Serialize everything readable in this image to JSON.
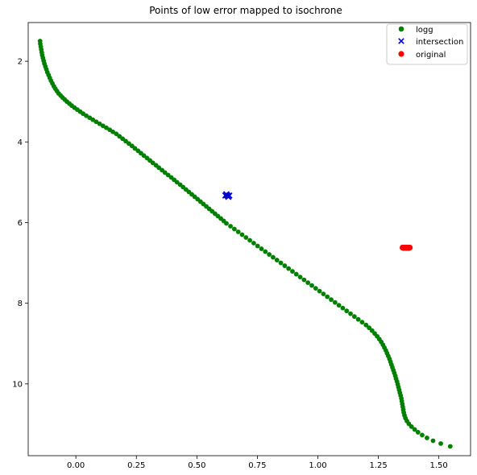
{
  "chart_data": {
    "type": "scatter",
    "title": "Points of low error mapped to isochrone",
    "xlabel": "",
    "ylabel": "",
    "xlim": [
      -0.197,
      1.631
    ],
    "ylim": [
      11.78,
      1.04
    ],
    "y_inverted": true,
    "grid": false,
    "legend_position": "top-right",
    "x_ticks": [
      0.0,
      0.25,
      0.5,
      0.75,
      1.0,
      1.25,
      1.5
    ],
    "x_tick_labels": [
      "0.00",
      "0.25",
      "0.50",
      "0.75",
      "1.00",
      "1.25",
      "1.50"
    ],
    "y_ticks": [
      2,
      4,
      6,
      8,
      10
    ],
    "y_tick_labels": [
      "2",
      "4",
      "6",
      "8",
      "10"
    ],
    "series": [
      {
        "name": "logg",
        "marker": "circle",
        "color": "#008000",
        "x": [
          -0.148,
          -0.147,
          -0.145,
          -0.143,
          -0.141,
          -0.139,
          -0.136,
          -0.133,
          -0.13,
          -0.126,
          -0.122,
          -0.118,
          -0.113,
          -0.108,
          -0.103,
          -0.097,
          -0.091,
          -0.085,
          -0.078,
          -0.071,
          -0.063,
          -0.055,
          -0.046,
          -0.037,
          -0.027,
          -0.017,
          -0.006,
          0.006,
          0.018,
          0.03,
          0.043,
          0.057,
          0.07,
          0.084,
          0.098,
          0.112,
          0.126,
          0.14,
          0.153,
          0.167,
          0.18,
          0.193,
          0.206,
          0.219,
          0.232,
          0.244,
          0.257,
          0.269,
          0.281,
          0.294,
          0.306,
          0.318,
          0.331,
          0.343,
          0.356,
          0.368,
          0.381,
          0.394,
          0.406,
          0.418,
          0.431,
          0.443,
          0.455,
          0.467,
          0.479,
          0.491,
          0.503,
          0.515,
          0.527,
          0.539,
          0.551,
          0.563,
          0.575,
          0.587,
          0.599,
          0.611,
          0.622,
          0.639,
          0.655,
          0.671,
          0.687,
          0.703,
          0.719,
          0.735,
          0.751,
          0.767,
          0.783,
          0.799,
          0.815,
          0.831,
          0.847,
          0.863,
          0.879,
          0.895,
          0.911,
          0.927,
          0.943,
          0.959,
          0.975,
          0.991,
          1.007,
          1.023,
          1.039,
          1.055,
          1.071,
          1.087,
          1.103,
          1.119,
          1.135,
          1.151,
          1.167,
          1.183,
          1.199,
          1.212,
          1.224,
          1.235,
          1.245,
          1.254,
          1.262,
          1.269,
          1.275,
          1.281,
          1.286,
          1.291,
          1.296,
          1.3,
          1.304,
          1.308,
          1.312,
          1.316,
          1.32,
          1.323,
          1.327,
          1.33,
          1.333,
          1.336,
          1.339,
          1.342,
          1.345,
          1.347,
          1.349,
          1.351,
          1.353,
          1.355,
          1.358,
          1.362,
          1.368,
          1.376,
          1.387,
          1.4,
          1.414,
          1.431,
          1.451,
          1.476,
          1.508,
          1.547
        ],
        "y": [
          1.5,
          1.57,
          1.64,
          1.71,
          1.78,
          1.85,
          1.92,
          1.99,
          2.06,
          2.13,
          2.2,
          2.27,
          2.34,
          2.41,
          2.48,
          2.55,
          2.62,
          2.68,
          2.74,
          2.8,
          2.85,
          2.9,
          2.95,
          3.0,
          3.05,
          3.1,
          3.15,
          3.2,
          3.25,
          3.3,
          3.35,
          3.4,
          3.45,
          3.5,
          3.55,
          3.6,
          3.65,
          3.7,
          3.75,
          3.8,
          3.86,
          3.92,
          3.98,
          4.04,
          4.1,
          4.16,
          4.22,
          4.28,
          4.34,
          4.4,
          4.46,
          4.52,
          4.58,
          4.64,
          4.7,
          4.76,
          4.82,
          4.88,
          4.94,
          5.0,
          5.06,
          5.12,
          5.18,
          5.24,
          5.3,
          5.36,
          5.42,
          5.48,
          5.54,
          5.6,
          5.66,
          5.72,
          5.78,
          5.84,
          5.9,
          5.96,
          6.02,
          6.09,
          6.16,
          6.23,
          6.3,
          6.37,
          6.44,
          6.51,
          6.58,
          6.65,
          6.72,
          6.79,
          6.86,
          6.93,
          7.0,
          7.07,
          7.14,
          7.21,
          7.28,
          7.35,
          7.42,
          7.49,
          7.56,
          7.63,
          7.7,
          7.77,
          7.84,
          7.91,
          7.98,
          8.05,
          8.12,
          8.19,
          8.26,
          8.33,
          8.4,
          8.47,
          8.54,
          8.61,
          8.68,
          8.75,
          8.82,
          8.89,
          8.96,
          9.03,
          9.1,
          9.17,
          9.24,
          9.31,
          9.38,
          9.45,
          9.52,
          9.59,
          9.66,
          9.73,
          9.8,
          9.87,
          9.94,
          10.01,
          10.08,
          10.15,
          10.22,
          10.29,
          10.36,
          10.43,
          10.5,
          10.57,
          10.64,
          10.71,
          10.78,
          10.85,
          10.92,
          10.99,
          11.06,
          11.13,
          11.2,
          11.27,
          11.34,
          11.41,
          11.48,
          11.55
        ]
      },
      {
        "name": "intersection",
        "marker": "x",
        "color": "#0000cc",
        "x": [
          0.618,
          0.622,
          0.626,
          0.63,
          0.634
        ],
        "y": [
          5.33,
          5.3,
          5.33,
          5.36,
          5.33
        ]
      },
      {
        "name": "original",
        "marker": "circle",
        "color": "#ff0000",
        "x": [
          1.35,
          1.355,
          1.36,
          1.365,
          1.37,
          1.375,
          1.38
        ],
        "y": [
          6.62,
          6.63,
          6.62,
          6.63,
          6.62,
          6.63,
          6.62
        ]
      }
    ]
  }
}
